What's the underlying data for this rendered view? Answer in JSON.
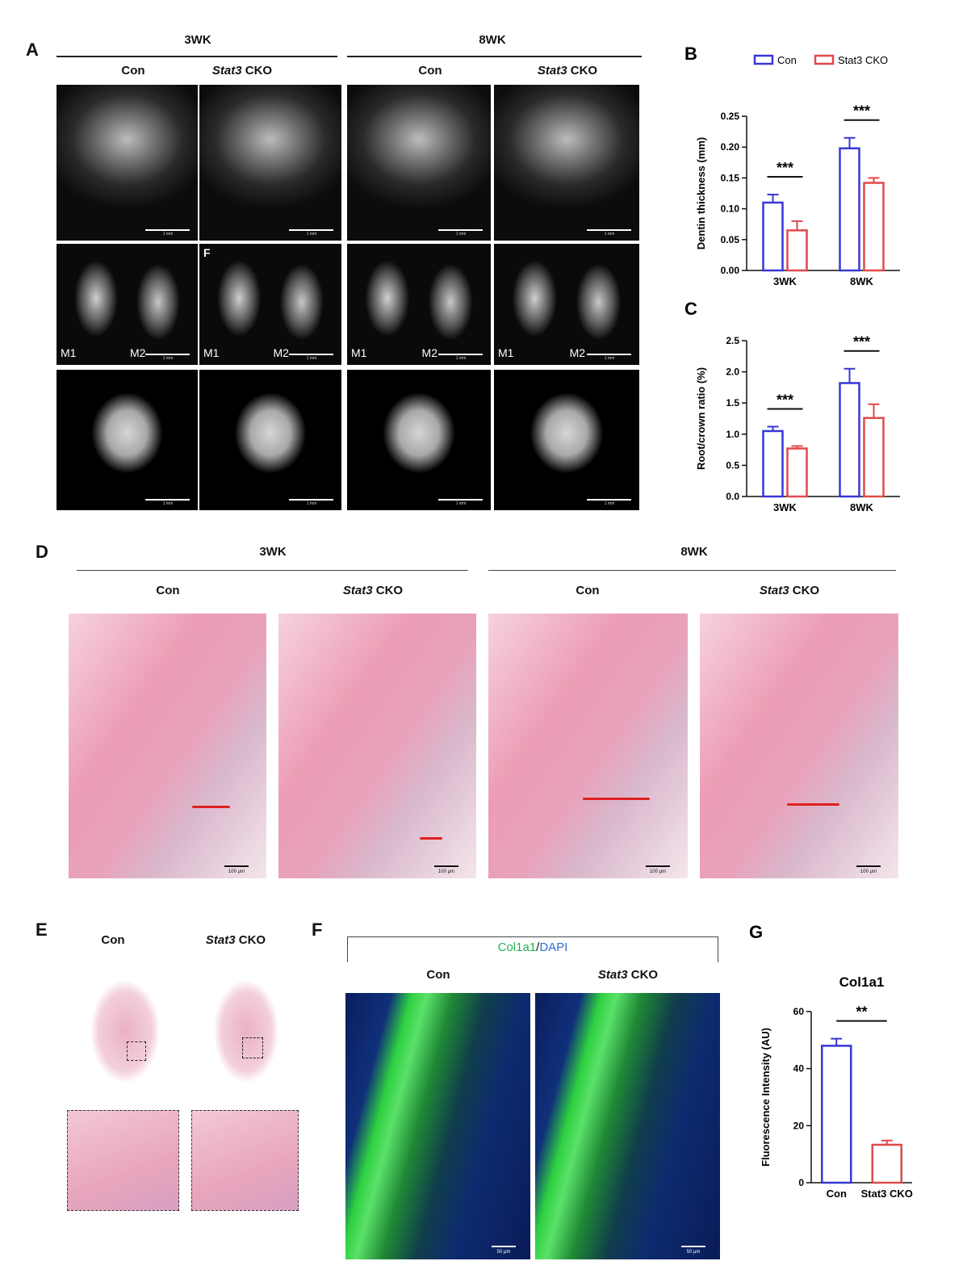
{
  "panels": {
    "A": {
      "label": "A",
      "groups": [
        {
          "title": "3WK",
          "columns": [
            {
              "text": "Con"
            },
            {
              "gene": "Stat3",
              "text": "CKO"
            }
          ]
        },
        {
          "title": "8WK",
          "columns": [
            {
              "text": "Con"
            },
            {
              "gene": "Stat3",
              "text": "CKO"
            }
          ]
        }
      ],
      "molar_labels": [
        "M1",
        "M2"
      ],
      "inset_label": "F",
      "scale_bar": "1 mm"
    },
    "D": {
      "label": "D",
      "groups": [
        {
          "title": "3WK",
          "columns": [
            {
              "text": "Con"
            },
            {
              "gene": "Stat3",
              "text": "CKO"
            }
          ]
        },
        {
          "title": "8WK",
          "columns": [
            {
              "text": "Con"
            },
            {
              "gene": "Stat3",
              "text": "CKO"
            }
          ]
        }
      ],
      "scale_bar": "100 μm"
    },
    "E": {
      "label": "E",
      "columns": [
        {
          "text": "Con"
        },
        {
          "gene": "Stat3",
          "text": "CKO"
        }
      ]
    },
    "F": {
      "label": "F",
      "stain": [
        "Col1a1",
        "/",
        "DAPI"
      ],
      "columns": [
        {
          "text": "Con"
        },
        {
          "gene": "Stat3",
          "text": "CKO"
        }
      ],
      "scale_bar": "50 μm"
    }
  },
  "chart_data": [
    {
      "panel": "B",
      "type": "grouped_bar",
      "ylabel": "Dentin thickness (mm)",
      "categories": [
        "3WK",
        "8WK"
      ],
      "series": [
        {
          "name": "Con",
          "color": "#3737d8",
          "values": [
            0.11,
            0.198
          ],
          "errors": [
            0.013,
            0.017
          ]
        },
        {
          "name": "Stat3 CKO",
          "color": "#e04a4a",
          "values": [
            0.065,
            0.142
          ],
          "errors": [
            0.015,
            0.008
          ]
        }
      ],
      "ylim": [
        0,
        0.25
      ],
      "yticks": [
        {
          "value": 0,
          "label": "0.00"
        },
        0.05,
        {
          "value": 0.1,
          "label": "0.10"
        },
        0.15,
        {
          "value": 0.2,
          "label": "0.20"
        },
        0.25
      ],
      "significance": [
        "***",
        "***"
      ],
      "legend": "top"
    },
    {
      "panel": "C",
      "type": "grouped_bar",
      "ylabel": "Root/crown ratio (%)",
      "categories": [
        "3WK",
        "8WK"
      ],
      "series": [
        {
          "name": "Con",
          "color": "#3737d8",
          "values": [
            1.05,
            1.82
          ],
          "errors": [
            0.07,
            0.23
          ]
        },
        {
          "name": "Stat3 CKO",
          "color": "#e04a4a",
          "values": [
            0.77,
            1.26
          ],
          "errors": [
            0.04,
            0.22
          ]
        }
      ],
      "ylim": [
        0,
        2.5
      ],
      "yticks": [
        {
          "value": 0,
          "label": "0.0"
        },
        0.5,
        {
          "value": 1,
          "label": "1.0"
        },
        1.5,
        {
          "value": 2,
          "label": "2.0"
        },
        2.5
      ],
      "significance": [
        "***",
        "***"
      ]
    },
    {
      "panel": "G",
      "type": "bar",
      "title": "Col1a1",
      "ylabel": "Fluorescence Intensity (AU)",
      "categories": [
        "Con",
        "Stat3 CKO"
      ],
      "values": [
        48,
        13.3
      ],
      "errors": [
        2.5,
        1.5
      ],
      "colors": [
        "#3737d8",
        "#e04a4a"
      ],
      "ylim": [
        0,
        60
      ],
      "yticks": [
        0,
        20,
        40,
        60
      ],
      "significance": "**"
    }
  ]
}
